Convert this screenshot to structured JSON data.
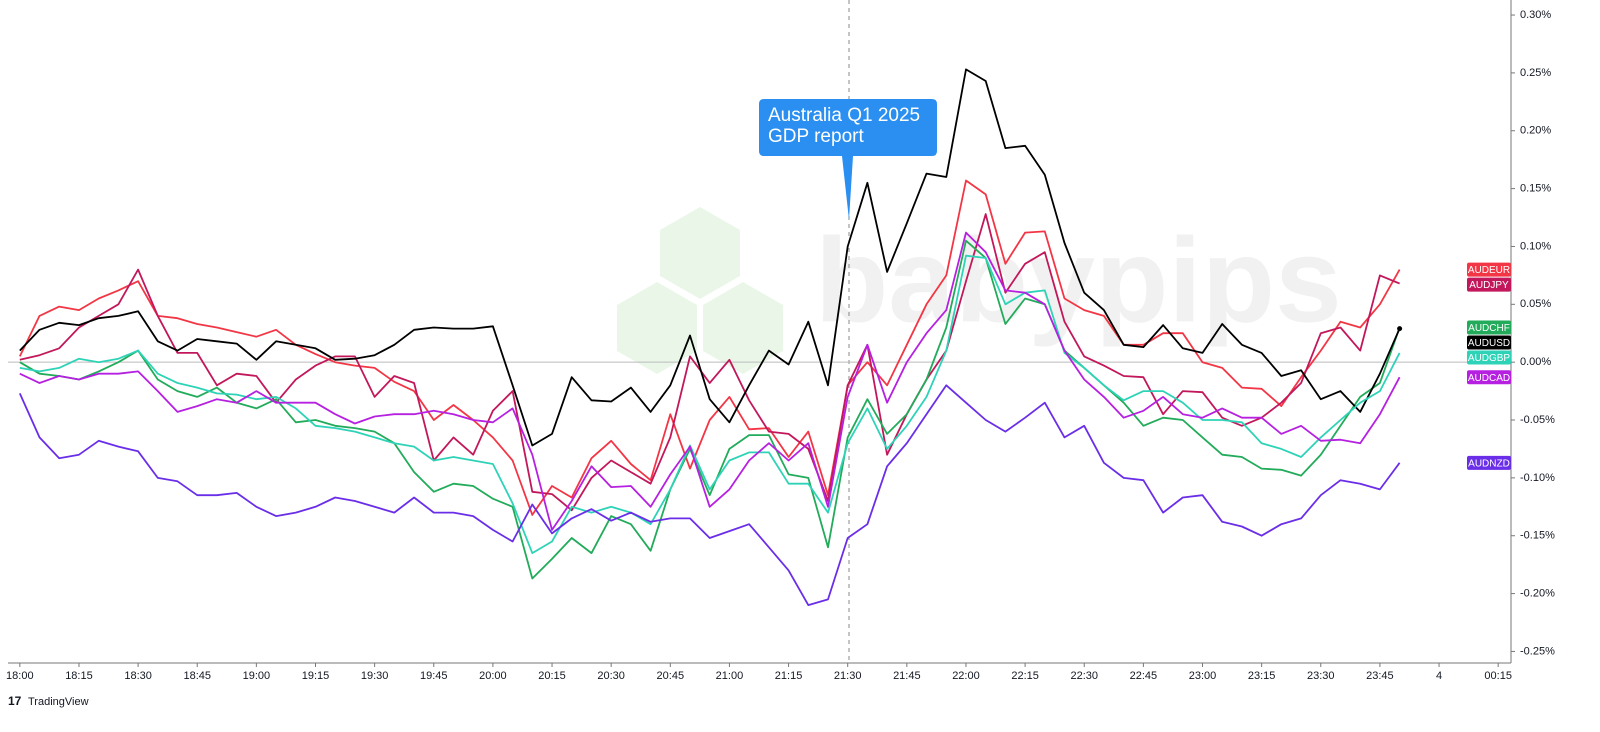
{
  "chart_data": {
    "type": "line",
    "annotation": [
      "Australia Q1 2025",
      "GDP report"
    ],
    "watermark": "babypips",
    "branding": "TradingView",
    "x": [
      0,
      5,
      10,
      15,
      20,
      25,
      30,
      35,
      40,
      45,
      50,
      55,
      60,
      65,
      70,
      75,
      80,
      85,
      90,
      95,
      100,
      105,
      110,
      115,
      120,
      125,
      130,
      135,
      140,
      145,
      150,
      155,
      160,
      165,
      170,
      175,
      180,
      185,
      190,
      195,
      200,
      205,
      210,
      215,
      220,
      225,
      230,
      235,
      240,
      245,
      250,
      255,
      260,
      265,
      270,
      275,
      280,
      285,
      290,
      295,
      300,
      305,
      310,
      315,
      320,
      325,
      330,
      335,
      340,
      345,
      350
    ],
    "xlim": [
      -3,
      378
    ],
    "xticks": [
      {
        "value": 0,
        "label": "18:00"
      },
      {
        "value": 15,
        "label": "18:15"
      },
      {
        "value": 30,
        "label": "18:30"
      },
      {
        "value": 45,
        "label": "18:45"
      },
      {
        "value": 60,
        "label": "19:00"
      },
      {
        "value": 75,
        "label": "19:15"
      },
      {
        "value": 90,
        "label": "19:30"
      },
      {
        "value": 105,
        "label": "19:45"
      },
      {
        "value": 120,
        "label": "20:00"
      },
      {
        "value": 135,
        "label": "20:15"
      },
      {
        "value": 150,
        "label": "20:30"
      },
      {
        "value": 165,
        "label": "20:45"
      },
      {
        "value": 180,
        "label": "21:00"
      },
      {
        "value": 195,
        "label": "21:15"
      },
      {
        "value": 210,
        "label": "21:30"
      },
      {
        "value": 225,
        "label": "21:45"
      },
      {
        "value": 240,
        "label": "22:00"
      },
      {
        "value": 255,
        "label": "22:15"
      },
      {
        "value": 270,
        "label": "22:30"
      },
      {
        "value": 285,
        "label": "22:45"
      },
      {
        "value": 300,
        "label": "23:00"
      },
      {
        "value": 315,
        "label": "23:15"
      },
      {
        "value": 330,
        "label": "23:30"
      },
      {
        "value": 345,
        "label": "23:45"
      },
      {
        "value": 360,
        "label": "4"
      },
      {
        "value": 375,
        "label": "00:15"
      }
    ],
    "ylim": [
      -0.26,
      0.313
    ],
    "yticks": [
      {
        "value": 0.3,
        "label": "0.30%"
      },
      {
        "value": 0.25,
        "label": "0.25%"
      },
      {
        "value": 0.2,
        "label": "0.20%"
      },
      {
        "value": 0.15,
        "label": "0.15%"
      },
      {
        "value": 0.1,
        "label": "0.10%"
      },
      {
        "value": 0.05,
        "label": "0.05%"
      },
      {
        "value": 0,
        "label": "0.00%"
      },
      {
        "value": -0.05,
        "label": "-0.05%"
      },
      {
        "value": -0.1,
        "label": "-0.10%"
      },
      {
        "value": -0.15,
        "label": "-0.15%"
      },
      {
        "value": -0.2,
        "label": "-0.20%"
      },
      {
        "value": -0.25,
        "label": "-0.25%"
      }
    ],
    "series": [
      {
        "name": "AUDEUR",
        "color": "#f23645",
        "values": [
          0.005,
          0.04,
          0.048,
          0.045,
          0.055,
          0.062,
          0.07,
          0.04,
          0.038,
          0.033,
          0.03,
          0.026,
          0.022,
          0.028,
          0.015,
          0.007,
          0.0,
          -0.003,
          -0.005,
          -0.017,
          -0.025,
          -0.05,
          -0.037,
          -0.05,
          -0.065,
          -0.085,
          -0.132,
          -0.107,
          -0.117,
          -0.083,
          -0.068,
          -0.088,
          -0.102,
          -0.045,
          -0.092,
          -0.05,
          -0.03,
          -0.058,
          -0.057,
          -0.082,
          -0.06,
          -0.115,
          -0.02,
          0.0,
          -0.02,
          0.015,
          0.05,
          0.075,
          0.157,
          0.145,
          0.085,
          0.112,
          0.113,
          0.055,
          0.045,
          0.04,
          0.015,
          0.015,
          0.025,
          0.025,
          0.0,
          -0.005,
          -0.022,
          -0.023,
          -0.038,
          -0.013,
          0.01,
          0.035,
          0.03,
          0.05,
          0.08
        ]
      },
      {
        "name": "AUDJPY",
        "color": "#c2185b",
        "values": [
          0.002,
          0.006,
          0.012,
          0.03,
          0.04,
          0.05,
          0.08,
          0.04,
          0.008,
          0.008,
          -0.02,
          -0.01,
          -0.012,
          -0.035,
          -0.015,
          -0.003,
          0.005,
          0.005,
          -0.03,
          -0.012,
          -0.018,
          -0.085,
          -0.065,
          -0.08,
          -0.042,
          -0.025,
          -0.112,
          -0.114,
          -0.128,
          -0.1,
          -0.085,
          -0.095,
          -0.105,
          -0.065,
          0.005,
          -0.018,
          0.002,
          -0.033,
          -0.06,
          -0.062,
          -0.075,
          -0.12,
          -0.02,
          0.015,
          -0.08,
          -0.045,
          -0.015,
          0.01,
          0.07,
          0.128,
          0.06,
          0.085,
          0.095,
          0.035,
          0.005,
          -0.003,
          -0.012,
          -0.013,
          -0.045,
          -0.025,
          -0.026,
          -0.048,
          -0.055,
          -0.048,
          -0.035,
          -0.018,
          0.025,
          0.03,
          0.01,
          0.075,
          0.068
        ]
      },
      {
        "name": "AUDCHF",
        "color": "#22ab5a",
        "values": [
          0.0,
          -0.01,
          -0.012,
          -0.015,
          -0.008,
          0.0,
          0.01,
          -0.015,
          -0.025,
          -0.03,
          -0.022,
          -0.035,
          -0.04,
          -0.032,
          -0.052,
          -0.05,
          -0.055,
          -0.057,
          -0.06,
          -0.07,
          -0.095,
          -0.112,
          -0.105,
          -0.107,
          -0.118,
          -0.125,
          -0.187,
          -0.17,
          -0.152,
          -0.165,
          -0.133,
          -0.14,
          -0.163,
          -0.11,
          -0.075,
          -0.115,
          -0.075,
          -0.063,
          -0.063,
          -0.097,
          -0.1,
          -0.16,
          -0.065,
          -0.032,
          -0.062,
          -0.045,
          -0.015,
          0.03,
          0.105,
          0.09,
          0.033,
          0.055,
          0.05,
          0.01,
          -0.005,
          -0.02,
          -0.035,
          -0.055,
          -0.048,
          -0.05,
          -0.065,
          -0.08,
          -0.082,
          -0.092,
          -0.093,
          -0.098,
          -0.08,
          -0.055,
          -0.03,
          -0.018,
          0.03
        ]
      },
      {
        "name": "AUDUSD",
        "color": "#000000",
        "values": [
          0.01,
          0.028,
          0.034,
          0.032,
          0.038,
          0.04,
          0.044,
          0.018,
          0.01,
          0.02,
          0.018,
          0.016,
          0.002,
          0.018,
          0.015,
          0.012,
          0.002,
          0.003,
          0.006,
          0.015,
          0.028,
          0.03,
          0.029,
          0.029,
          0.031,
          -0.02,
          -0.072,
          -0.062,
          -0.013,
          -0.033,
          -0.034,
          -0.022,
          -0.043,
          -0.02,
          0.023,
          -0.032,
          -0.052,
          -0.02,
          0.01,
          -0.002,
          0.035,
          -0.02,
          0.1,
          0.155,
          0.078,
          0.12,
          0.163,
          0.16,
          0.253,
          0.243,
          0.185,
          0.187,
          0.162,
          0.103,
          0.06,
          0.045,
          0.015,
          0.013,
          0.032,
          0.012,
          0.008,
          0.033,
          0.015,
          0.008,
          -0.012,
          -0.007,
          -0.032,
          -0.025,
          -0.043,
          -0.01,
          0.029
        ]
      },
      {
        "name": "AUDGBP",
        "color": "#2ed3b7",
        "values": [
          -0.005,
          -0.008,
          -0.005,
          0.003,
          0.0,
          0.003,
          0.01,
          -0.01,
          -0.018,
          -0.022,
          -0.027,
          -0.028,
          -0.032,
          -0.03,
          -0.04,
          -0.055,
          -0.057,
          -0.06,
          -0.065,
          -0.07,
          -0.073,
          -0.085,
          -0.082,
          -0.085,
          -0.088,
          -0.122,
          -0.165,
          -0.155,
          -0.125,
          -0.13,
          -0.125,
          -0.13,
          -0.14,
          -0.11,
          -0.072,
          -0.11,
          -0.085,
          -0.078,
          -0.078,
          -0.105,
          -0.105,
          -0.13,
          -0.07,
          -0.04,
          -0.075,
          -0.055,
          -0.03,
          0.01,
          0.092,
          0.09,
          0.05,
          0.06,
          0.062,
          0.008,
          -0.005,
          -0.02,
          -0.033,
          -0.025,
          -0.025,
          -0.035,
          -0.05,
          -0.05,
          -0.052,
          -0.07,
          -0.075,
          -0.082,
          -0.065,
          -0.05,
          -0.035,
          -0.025,
          0.008
        ]
      },
      {
        "name": "AUDCAD",
        "color": "#b620e0",
        "values": [
          -0.01,
          -0.018,
          -0.012,
          -0.015,
          -0.01,
          -0.01,
          -0.008,
          -0.025,
          -0.043,
          -0.038,
          -0.032,
          -0.035,
          -0.025,
          -0.035,
          -0.035,
          -0.035,
          -0.045,
          -0.053,
          -0.047,
          -0.045,
          -0.045,
          -0.042,
          -0.045,
          -0.05,
          -0.052,
          -0.04,
          -0.08,
          -0.145,
          -0.12,
          -0.09,
          -0.108,
          -0.107,
          -0.125,
          -0.097,
          -0.073,
          -0.125,
          -0.11,
          -0.085,
          -0.07,
          -0.085,
          -0.07,
          -0.125,
          -0.03,
          0.015,
          -0.035,
          0.0,
          0.025,
          0.045,
          0.112,
          0.095,
          0.062,
          0.06,
          0.05,
          0.01,
          -0.015,
          -0.03,
          -0.048,
          -0.042,
          -0.03,
          -0.045,
          -0.048,
          -0.04,
          -0.048,
          -0.048,
          -0.062,
          -0.055,
          -0.068,
          -0.067,
          -0.07,
          -0.045,
          -0.013
        ]
      },
      {
        "name": "AUDNZD",
        "color": "#6a2ee8",
        "values": [
          -0.027,
          -0.065,
          -0.083,
          -0.08,
          -0.068,
          -0.073,
          -0.077,
          -0.1,
          -0.103,
          -0.115,
          -0.115,
          -0.113,
          -0.125,
          -0.133,
          -0.13,
          -0.125,
          -0.117,
          -0.12,
          -0.125,
          -0.13,
          -0.117,
          -0.13,
          -0.13,
          -0.133,
          -0.145,
          -0.155,
          -0.123,
          -0.148,
          -0.135,
          -0.127,
          -0.137,
          -0.13,
          -0.138,
          -0.135,
          -0.135,
          -0.152,
          -0.146,
          -0.14,
          -0.16,
          -0.18,
          -0.21,
          -0.205,
          -0.152,
          -0.14,
          -0.09,
          -0.07,
          -0.045,
          -0.02,
          -0.035,
          -0.05,
          -0.06,
          -0.048,
          -0.035,
          -0.065,
          -0.055,
          -0.087,
          -0.1,
          -0.102,
          -0.13,
          -0.117,
          -0.115,
          -0.138,
          -0.142,
          -0.15,
          -0.14,
          -0.135,
          -0.115,
          -0.102,
          -0.105,
          -0.11,
          -0.087
        ]
      }
    ]
  }
}
